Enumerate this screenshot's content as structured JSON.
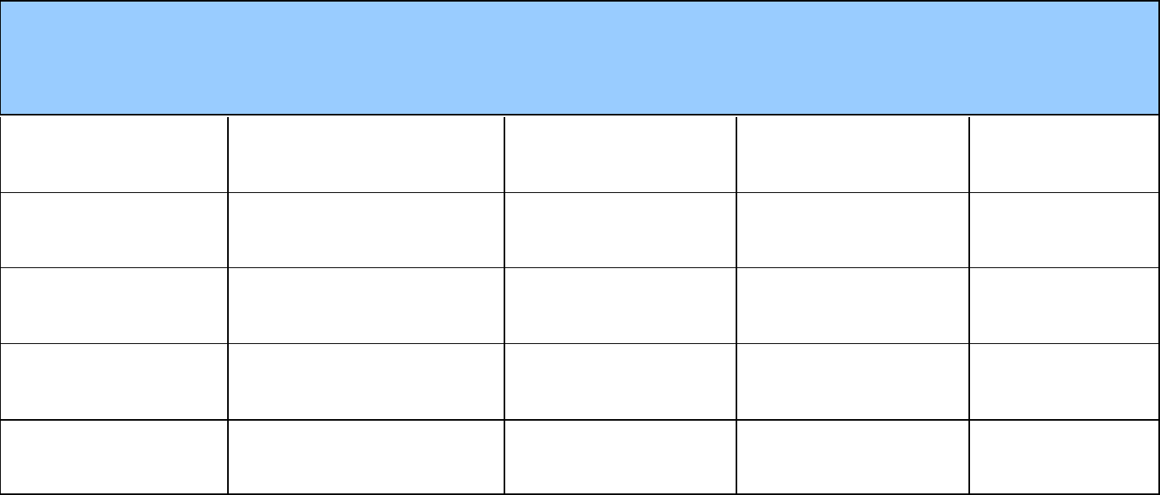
{
  "table": {
    "header_color": "#99ccff",
    "border_color": "#000000",
    "rows": 5,
    "columns": 5,
    "header_text": "",
    "cells": [
      [
        "",
        "",
        "",
        "",
        ""
      ],
      [
        "",
        "",
        "",
        "",
        ""
      ],
      [
        "",
        "",
        "",
        "",
        ""
      ],
      [
        "",
        "",
        "",
        "",
        ""
      ],
      [
        "",
        "",
        "",
        "",
        ""
      ]
    ]
  }
}
